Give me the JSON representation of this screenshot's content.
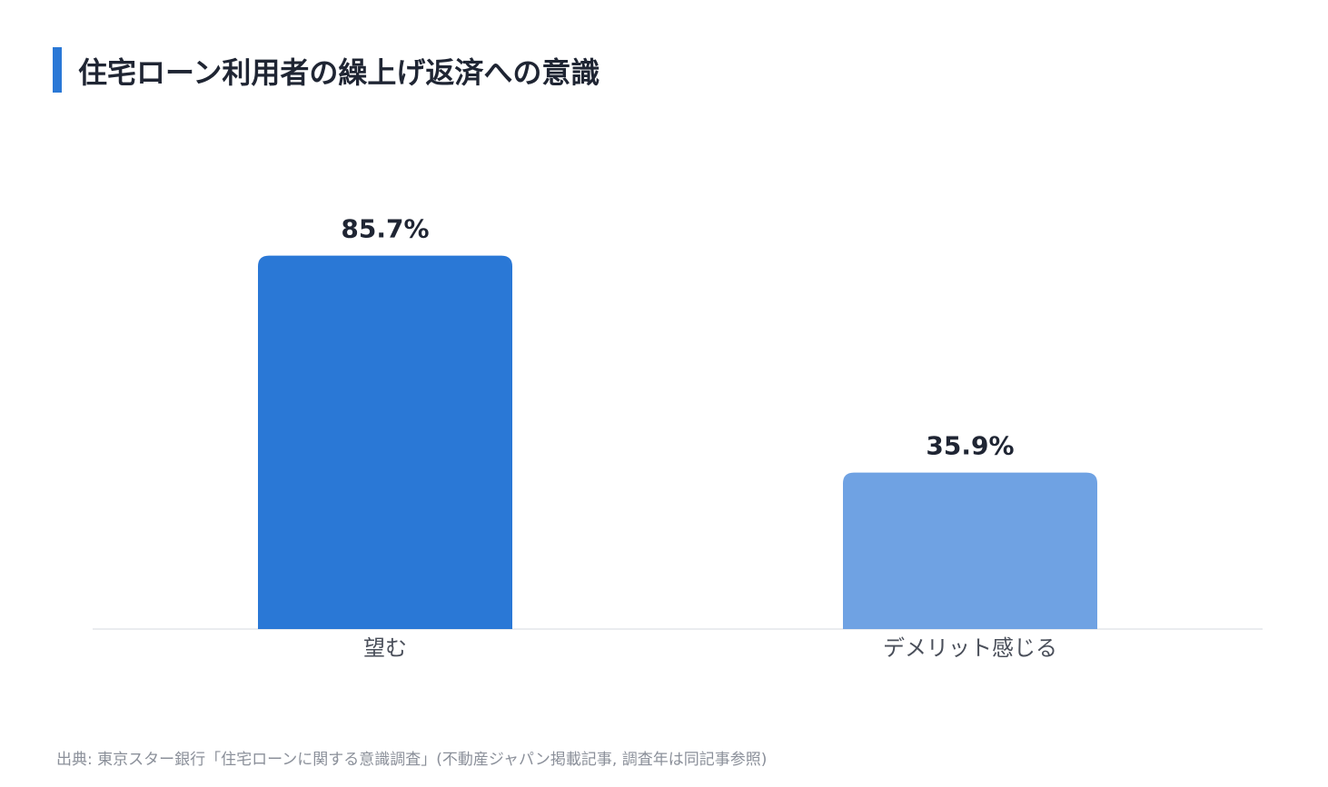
{
  "chart_data": {
    "type": "bar",
    "title": "住宅ローン利用者の繰上げ返済への意識",
    "categories": [
      "望む",
      "デメリット感じる"
    ],
    "values": [
      85.7,
      35.9
    ],
    "value_labels": [
      "85.7%",
      "35.9%"
    ],
    "colors": [
      "#2a78d6",
      "#6fa2e3"
    ],
    "source": "出典: 東京スター銀行「住宅ローンに関する意識調査」(不動産ジャパン掲載記事, 調査年は同記事参照)"
  }
}
